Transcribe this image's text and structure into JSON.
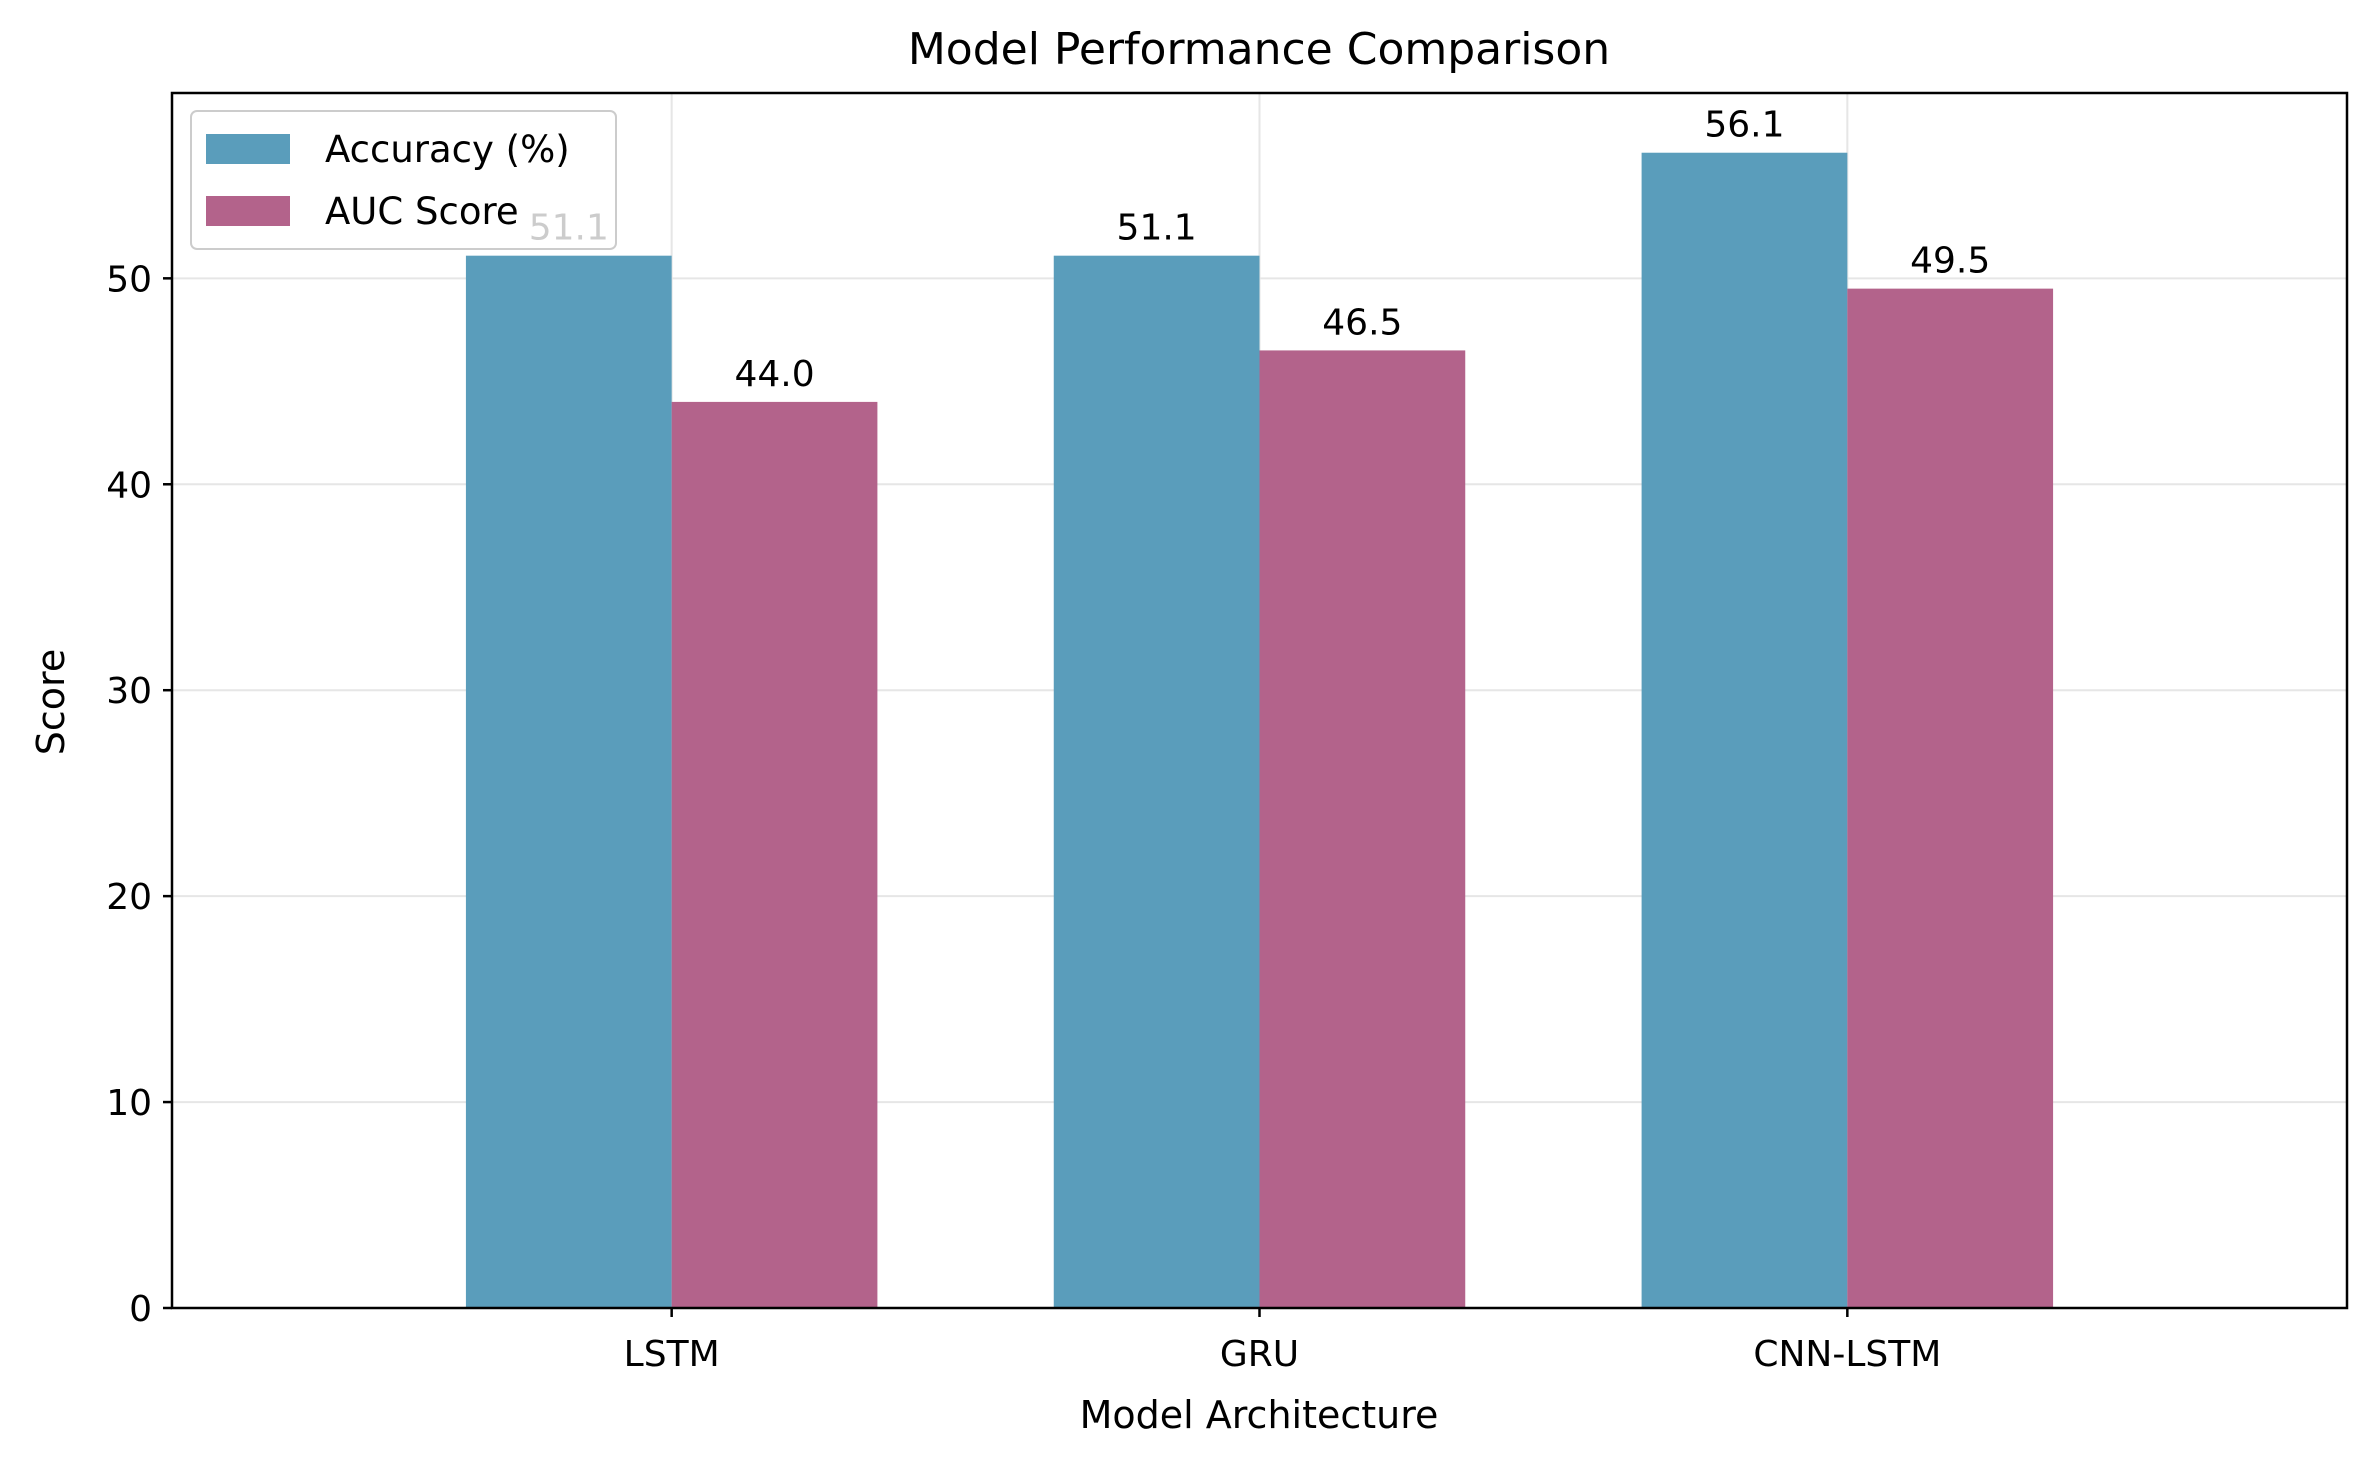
{
  "chart_data": {
    "type": "bar",
    "title": "Model Performance Comparison",
    "xlabel": "Model Architecture",
    "ylabel": "Score",
    "categories": [
      "LSTM",
      "GRU",
      "CNN-LSTM"
    ],
    "series": [
      {
        "name": "Accuracy (%)",
        "values": [
          51.1,
          51.1,
          56.1
        ],
        "labels": [
          "51.1",
          "51.1",
          "56.1"
        ],
        "color": "#5a9dbb"
      },
      {
        "name": "AUC Score",
        "values": [
          44.0,
          46.5,
          49.5
        ],
        "labels": [
          "44.0",
          "46.5",
          "49.5"
        ],
        "color": "#b3638b"
      }
    ],
    "ylim": [
      0,
      59
    ],
    "yticks": [
      0,
      10,
      20,
      30,
      40,
      50
    ],
    "ytick_labels": [
      "0",
      "10",
      "20",
      "30",
      "40",
      "50"
    ],
    "grid": true,
    "legend_position": "top-left"
  }
}
